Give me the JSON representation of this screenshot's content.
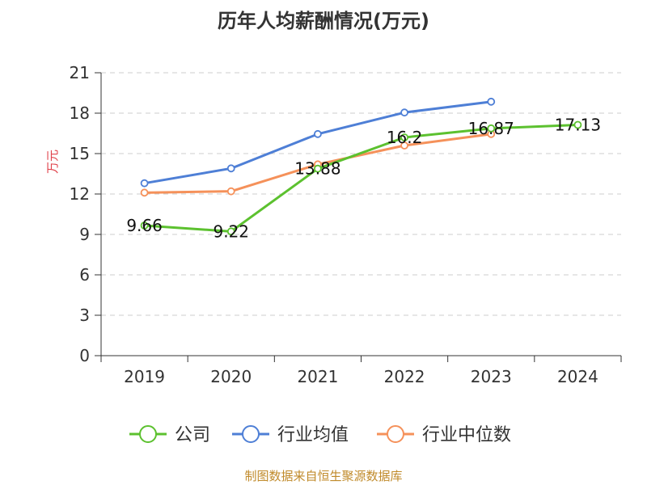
{
  "chart_data": {
    "type": "line",
    "title": "历年人均薪酬情况(万元)",
    "ylabel": "万元",
    "ylim": [
      0,
      21
    ],
    "yticks": [
      0,
      3,
      6,
      9,
      12,
      15,
      18,
      21
    ],
    "categories": [
      "2019",
      "2020",
      "2021",
      "2022",
      "2023",
      "2024"
    ],
    "grid": true,
    "legend_position": "bottom",
    "series": [
      {
        "name": "公司",
        "color": "#5cc12f",
        "values": [
          9.66,
          9.22,
          13.88,
          16.2,
          16.87,
          17.13
        ],
        "labels": [
          "9.66",
          "9.22",
          "13.88",
          "16.2",
          "16.87",
          "17.13"
        ]
      },
      {
        "name": "行业均值",
        "color": "#4e7fd6",
        "values": [
          12.8,
          13.9,
          16.45,
          18.05,
          18.85,
          null
        ]
      },
      {
        "name": "行业中位数",
        "color": "#f5915a",
        "values": [
          12.1,
          12.2,
          14.2,
          15.6,
          16.45,
          null
        ]
      }
    ]
  },
  "source": "制图数据来自恒生聚源数据库"
}
